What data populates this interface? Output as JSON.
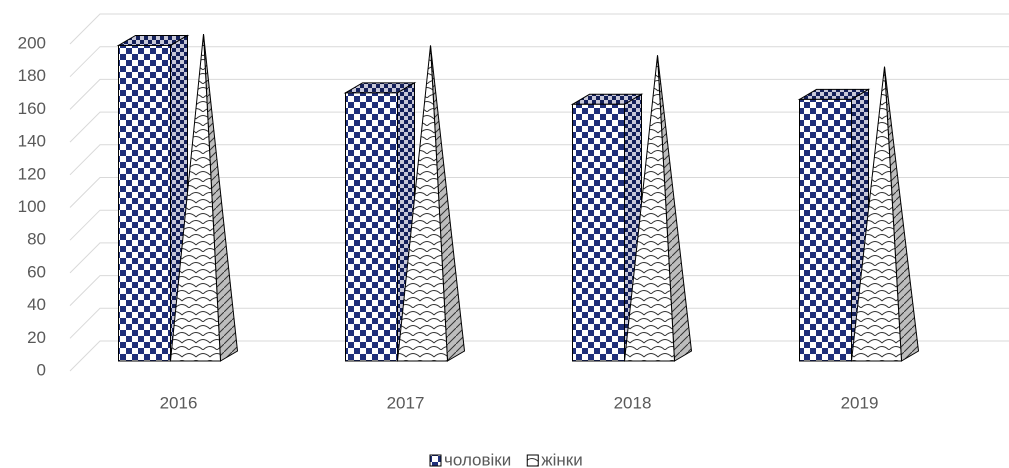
{
  "chart_data": {
    "type": "bar3d",
    "categories": [
      "2016",
      "2017",
      "2018",
      "2019"
    ],
    "series": [
      {
        "name": "чоловіки",
        "color": "#1f2f7a",
        "shape": "box",
        "values": [
          193,
          164,
          157,
          160
        ]
      },
      {
        "name": "жінки",
        "color": "#ffffff",
        "shape": "pyramid",
        "values": [
          200,
          193,
          187,
          180
        ]
      }
    ],
    "ylim": [
      0,
      200
    ],
    "yticks": [
      0,
      20,
      40,
      60,
      80,
      100,
      120,
      140,
      160,
      180,
      200
    ],
    "grid": true,
    "legend": "bottom"
  }
}
